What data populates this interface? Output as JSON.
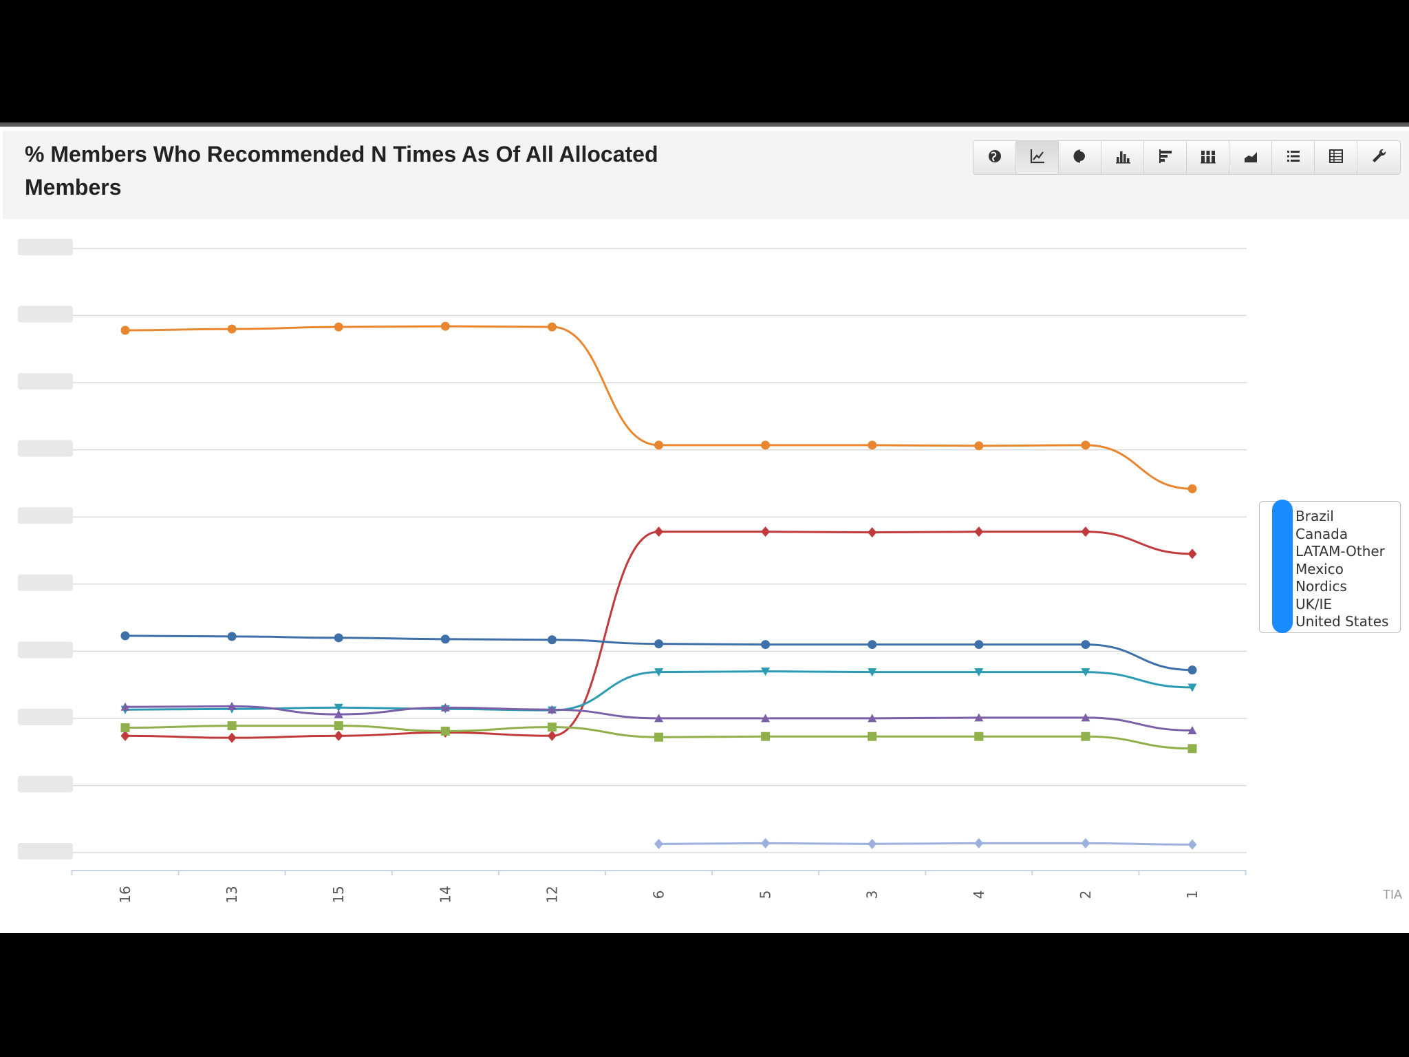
{
  "title": "% Members Who Recommended N Times As Of All Allocated Members",
  "toolbar": [
    {
      "name": "map-button",
      "icon": "globe-icon",
      "active": false
    },
    {
      "name": "line-chart-button",
      "icon": "line-chart-icon",
      "active": true
    },
    {
      "name": "pie-chart-button",
      "icon": "pie-chart-icon",
      "active": false
    },
    {
      "name": "column-chart-button",
      "icon": "column-chart-icon",
      "active": false
    },
    {
      "name": "bar-chart-button",
      "icon": "bar-chart-icon",
      "active": false
    },
    {
      "name": "stacked-column-button",
      "icon": "stacked-column-icon",
      "active": false
    },
    {
      "name": "area-chart-button",
      "icon": "area-chart-icon",
      "active": false
    },
    {
      "name": "list-view-button",
      "icon": "list-icon",
      "active": false
    },
    {
      "name": "table-view-button",
      "icon": "table-icon",
      "active": false
    },
    {
      "name": "settings-button",
      "icon": "wrench-icon",
      "active": false
    }
  ],
  "corner_label": "TIA",
  "chart_data": {
    "type": "line",
    "categories": [
      "16",
      "13",
      "15",
      "14",
      "12",
      "6",
      "5",
      "3",
      "4",
      "2",
      "1"
    ],
    "y_range": [
      0,
      9
    ],
    "y_tick_labels_obscured": true,
    "grid": true,
    "legend_placement": "right",
    "series": [
      {
        "name": "Brazil",
        "color": "#e8872f",
        "marker": "circle",
        "values": [
          7.78,
          7.8,
          7.83,
          7.84,
          7.83,
          6.07,
          6.07,
          6.07,
          6.06,
          6.07,
          5.42
        ]
      },
      {
        "name": "Canada",
        "color": "#c0393b",
        "marker": "diamond",
        "values": [
          1.74,
          1.71,
          1.74,
          1.79,
          1.74,
          4.78,
          4.78,
          4.77,
          4.78,
          4.78,
          4.45
        ]
      },
      {
        "name": "LATAM-Other",
        "color": "#3d6fa8",
        "marker": "circle",
        "values": [
          3.23,
          3.22,
          3.2,
          3.18,
          3.17,
          3.11,
          3.1,
          3.1,
          3.1,
          3.1,
          2.72
        ]
      },
      {
        "name": "Mexico",
        "color": "#2a9bb3",
        "marker": "triangle-down",
        "values": [
          2.13,
          2.14,
          2.16,
          2.14,
          2.12,
          2.69,
          2.7,
          2.69,
          2.69,
          2.69,
          2.46
        ]
      },
      {
        "name": "Nordics",
        "color": "#7b60a8",
        "marker": "triangle",
        "values": [
          2.17,
          2.18,
          2.06,
          2.16,
          2.13,
          2.0,
          2.0,
          2.0,
          2.01,
          2.01,
          1.82
        ]
      },
      {
        "name": "UK/IE",
        "color": "#8fb04a",
        "marker": "square",
        "values": [
          1.86,
          1.89,
          1.89,
          1.81,
          1.87,
          1.72,
          1.73,
          1.73,
          1.73,
          1.73,
          1.55
        ]
      },
      {
        "name": "United States",
        "color": "#9db0dc",
        "marker": "diamond",
        "values": [
          null,
          null,
          null,
          null,
          null,
          0.13,
          0.14,
          0.13,
          0.14,
          0.14,
          0.12
        ]
      }
    ]
  }
}
